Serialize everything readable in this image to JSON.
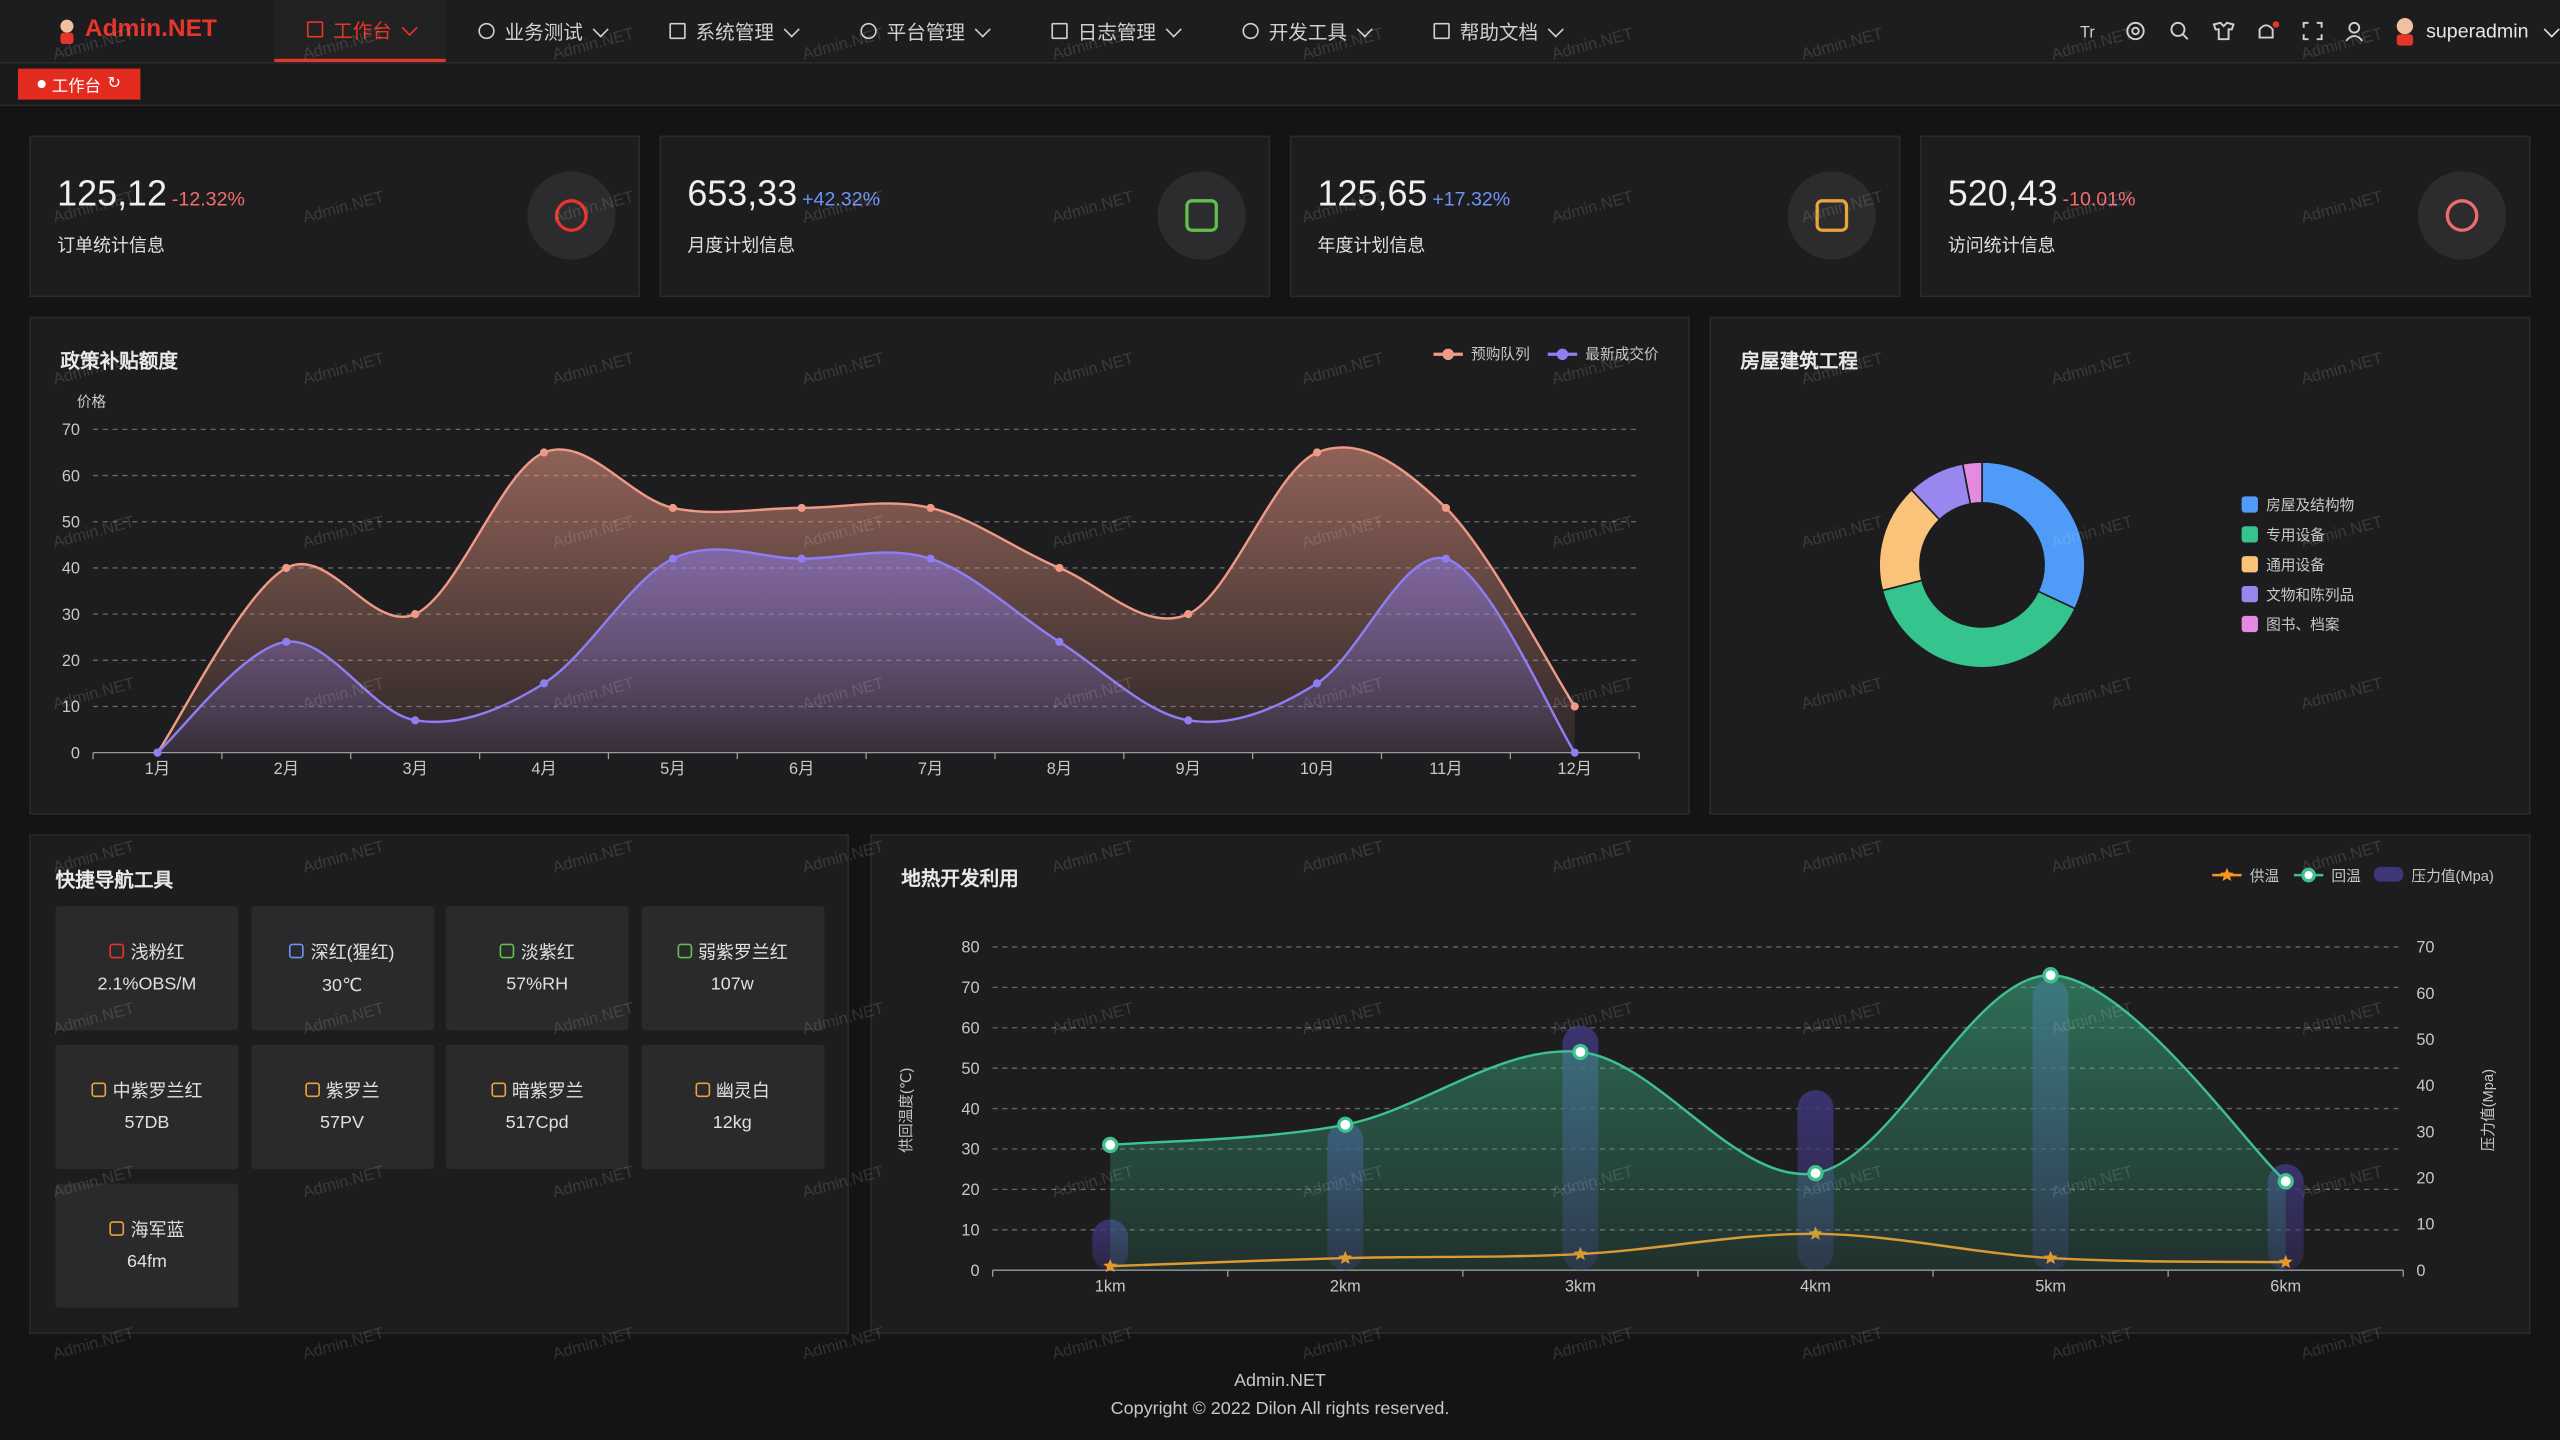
{
  "header": {
    "logo": "Admin.NET",
    "menu": [
      "工作台",
      "业务测试",
      "系统管理",
      "平台管理",
      "日志管理",
      "开发工具",
      "帮助文档"
    ],
    "user": "superadmin"
  },
  "tabs": [
    "工作台"
  ],
  "watermark": "Admin.NET",
  "stats": [
    {
      "value": "125,12",
      "change": "-12.32%",
      "label": "订单统计信息"
    },
    {
      "value": "653,33",
      "change": "+42.32%",
      "label": "月度计划信息"
    },
    {
      "value": "125,65",
      "change": "+17.32%",
      "label": "年度计划信息"
    },
    {
      "value": "520,43",
      "change": "-10.01%",
      "label": "访问统计信息"
    }
  ],
  "quick_nav": {
    "title": "快捷导航工具",
    "items": [
      {
        "name": "浅粉红",
        "value": "2.1%OBS/M"
      },
      {
        "name": "深红(猩红)",
        "value": "30℃"
      },
      {
        "name": "淡紫红",
        "value": "57%RH"
      },
      {
        "name": "弱紫罗兰红",
        "value": "107w"
      },
      {
        "name": "中紫罗兰红",
        "value": "57DB"
      },
      {
        "name": "紫罗兰",
        "value": "57PV"
      },
      {
        "name": "暗紫罗兰",
        "value": "517Cpd"
      },
      {
        "name": "幽灵白",
        "value": "12kg"
      },
      {
        "name": "海军蓝",
        "value": "64fm"
      }
    ]
  },
  "chart_data": [
    {
      "type": "line",
      "title": "政策补贴额度",
      "y_label": "价格",
      "categories": [
        "1月",
        "2月",
        "3月",
        "4月",
        "5月",
        "6月",
        "7月",
        "8月",
        "9月",
        "10月",
        "11月",
        "12月"
      ],
      "series": [
        {
          "name": "预购队列",
          "color": "#ee9a86",
          "values": [
            0,
            40,
            30,
            65,
            53,
            53,
            53,
            40,
            30,
            65,
            53,
            10
          ]
        },
        {
          "name": "最新成交价",
          "color": "#8f7df2",
          "values": [
            0,
            24,
            7,
            15,
            42,
            42,
            42,
            24,
            7,
            15,
            42,
            0
          ]
        }
      ],
      "ylim": [
        0,
        70
      ],
      "yticks": [
        0,
        10,
        20,
        30,
        40,
        50,
        60,
        70
      ],
      "grid": true,
      "smooth": true,
      "area": true
    },
    {
      "type": "pie",
      "title": "房屋建筑工程",
      "categories": [
        "房屋及结构物",
        "专用设备",
        "通用设备",
        "文物和陈列品",
        "图书、档案"
      ],
      "values": [
        32,
        39,
        17,
        9,
        3
      ],
      "colors": [
        "#4f9bf7",
        "#36c48e",
        "#fbc37a",
        "#9a86ef",
        "#e48ae0"
      ],
      "donut": true
    },
    {
      "type": "combo",
      "title": "地热开发利用",
      "y_label": "供回温度(℃)",
      "y2_label": "压力值(Mpa)",
      "categories": [
        "1km",
        "2km",
        "3km",
        "4km",
        "5km",
        "6km"
      ],
      "series": [
        {
          "name": "供温",
          "type": "line",
          "color": "#f39423",
          "marker": "star",
          "values": [
            1,
            3,
            4,
            9,
            3,
            2
          ]
        },
        {
          "name": "回温",
          "type": "line",
          "color": "#3fc08f",
          "area": true,
          "values": [
            31,
            36,
            54,
            24,
            73,
            22
          ]
        },
        {
          "name": "压力值(Mpa)",
          "type": "bar",
          "color": "#3d3678",
          "axis": "y2",
          "values": [
            11,
            32,
            53,
            39,
            63,
            23
          ]
        }
      ],
      "ylim": [
        0,
        80
      ],
      "yticks": [
        0,
        10,
        20,
        30,
        40,
        50,
        60,
        70,
        80
      ],
      "y2lim": [
        0,
        70
      ],
      "y2ticks": [
        0,
        10,
        20,
        30,
        40,
        50,
        60,
        70
      ],
      "grid": true,
      "smooth": true
    }
  ],
  "footer": {
    "name": "Admin.NET",
    "copyright": "Copyright © 2022 Dilon All rights reserved."
  }
}
